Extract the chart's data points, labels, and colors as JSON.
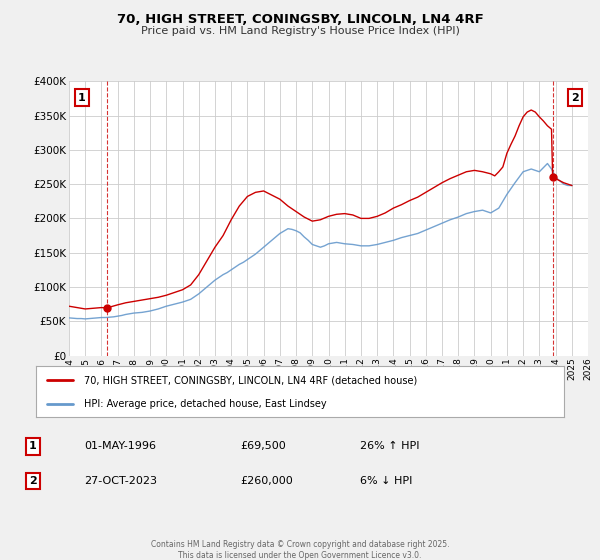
{
  "title": "70, HIGH STREET, CONINGSBY, LINCOLN, LN4 4RF",
  "subtitle": "Price paid vs. HM Land Registry's House Price Index (HPI)",
  "xlim": [
    1994,
    2026
  ],
  "ylim": [
    0,
    400000
  ],
  "yticks": [
    0,
    50000,
    100000,
    150000,
    200000,
    250000,
    300000,
    350000,
    400000
  ],
  "ytick_labels": [
    "£0",
    "£50K",
    "£100K",
    "£150K",
    "£200K",
    "£250K",
    "£300K",
    "£350K",
    "£400K"
  ],
  "background_color": "#f0f0f0",
  "plot_background": "#ffffff",
  "grid_color": "#cccccc",
  "line1_color": "#cc0000",
  "line2_color": "#6699cc",
  "line1_label": "70, HIGH STREET, CONINGSBY, LINCOLN, LN4 4RF (detached house)",
  "line2_label": "HPI: Average price, detached house, East Lindsey",
  "marker1_date": 1996.33,
  "marker1_value": 69500,
  "marker2_date": 2023.82,
  "marker2_value": 260000,
  "vline1_x": 1996.33,
  "vline2_x": 2023.82,
  "footer_text": "Contains HM Land Registry data © Crown copyright and database right 2025.\nThis data is licensed under the Open Government Licence v3.0.",
  "table_row1": [
    "1",
    "01-MAY-1996",
    "£69,500",
    "26% ↑ HPI"
  ],
  "table_row2": [
    "2",
    "27-OCT-2023",
    "£260,000",
    "6% ↓ HPI"
  ],
  "hpi_data_x": [
    1994.0,
    1994.25,
    1994.5,
    1994.75,
    1995.0,
    1995.25,
    1995.5,
    1995.75,
    1996.0,
    1996.25,
    1996.5,
    1996.75,
    1997.0,
    1997.25,
    1997.5,
    1997.75,
    1998.0,
    1998.25,
    1998.5,
    1998.75,
    1999.0,
    1999.25,
    1999.5,
    1999.75,
    2000.0,
    2000.25,
    2000.5,
    2000.75,
    2001.0,
    2001.25,
    2001.5,
    2001.75,
    2002.0,
    2002.25,
    2002.5,
    2002.75,
    2003.0,
    2003.25,
    2003.5,
    2003.75,
    2004.0,
    2004.25,
    2004.5,
    2004.75,
    2005.0,
    2005.25,
    2005.5,
    2005.75,
    2006.0,
    2006.25,
    2006.5,
    2006.75,
    2007.0,
    2007.25,
    2007.5,
    2007.75,
    2008.0,
    2008.25,
    2008.5,
    2008.75,
    2009.0,
    2009.25,
    2009.5,
    2009.75,
    2010.0,
    2010.25,
    2010.5,
    2010.75,
    2011.0,
    2011.25,
    2011.5,
    2011.75,
    2012.0,
    2012.25,
    2012.5,
    2012.75,
    2013.0,
    2013.25,
    2013.5,
    2013.75,
    2014.0,
    2014.25,
    2014.5,
    2014.75,
    2015.0,
    2015.25,
    2015.5,
    2015.75,
    2016.0,
    2016.25,
    2016.5,
    2016.75,
    2017.0,
    2017.25,
    2017.5,
    2017.75,
    2018.0,
    2018.25,
    2018.5,
    2018.75,
    2019.0,
    2019.25,
    2019.5,
    2019.75,
    2020.0,
    2020.25,
    2020.5,
    2020.75,
    2021.0,
    2021.25,
    2021.5,
    2021.75,
    2022.0,
    2022.25,
    2022.5,
    2022.75,
    2023.0,
    2023.25,
    2023.5,
    2023.75,
    2024.0,
    2024.25,
    2024.5,
    2024.75,
    2025.0
  ],
  "hpi_data_y": [
    55000,
    54500,
    54000,
    54000,
    53500,
    54000,
    54500,
    55000,
    55500,
    55500,
    56000,
    56500,
    57500,
    58500,
    60000,
    61000,
    62000,
    62500,
    63000,
    64000,
    65000,
    66500,
    68000,
    70000,
    72000,
    73500,
    75000,
    76500,
    78000,
    80000,
    82000,
    86000,
    90000,
    95000,
    100000,
    105000,
    110000,
    114000,
    118000,
    121000,
    125000,
    129000,
    133000,
    136000,
    140000,
    144000,
    148000,
    153000,
    158000,
    163000,
    168000,
    173000,
    178000,
    181500,
    185000,
    184000,
    182000,
    179000,
    173000,
    168000,
    162000,
    160000,
    158000,
    160000,
    163000,
    164000,
    165000,
    164000,
    163000,
    162500,
    162000,
    161000,
    160000,
    160000,
    160000,
    161000,
    162000,
    163500,
    165000,
    166500,
    168000,
    170000,
    172000,
    173500,
    175000,
    176500,
    178000,
    180500,
    183000,
    185500,
    188000,
    190500,
    193000,
    195500,
    198000,
    200000,
    202000,
    204500,
    207000,
    208500,
    210000,
    211000,
    212000,
    210000,
    208000,
    211500,
    215000,
    225000,
    235000,
    243500,
    252000,
    260000,
    268000,
    270000,
    272000,
    270000,
    268000,
    274000,
    280000,
    272000,
    260000,
    255000,
    250000,
    248000,
    248000
  ],
  "price_data_x": [
    1994.0,
    1994.5,
    1995.0,
    1995.5,
    1996.0,
    1996.33,
    1997.0,
    1997.5,
    1998.0,
    1998.5,
    1999.0,
    1999.5,
    2000.0,
    2000.5,
    2001.0,
    2001.5,
    2002.0,
    2002.5,
    2003.0,
    2003.5,
    2004.0,
    2004.5,
    2005.0,
    2005.5,
    2006.0,
    2006.5,
    2007.0,
    2007.5,
    2008.0,
    2008.5,
    2009.0,
    2009.5,
    2010.0,
    2010.5,
    2011.0,
    2011.5,
    2012.0,
    2012.5,
    2013.0,
    2013.5,
    2014.0,
    2014.5,
    2015.0,
    2015.5,
    2016.0,
    2016.5,
    2017.0,
    2017.5,
    2018.0,
    2018.5,
    2019.0,
    2019.5,
    2020.0,
    2020.25,
    2020.5,
    2020.75,
    2021.0,
    2021.25,
    2021.5,
    2021.75,
    2022.0,
    2022.25,
    2022.5,
    2022.75,
    2023.0,
    2023.25,
    2023.5,
    2023.75,
    2023.82,
    2024.0,
    2024.25,
    2024.5,
    2024.75,
    2025.0
  ],
  "price_data_y": [
    72000,
    70000,
    68000,
    69000,
    70000,
    69500,
    74000,
    77000,
    79000,
    81000,
    83000,
    85000,
    88000,
    92000,
    96000,
    103000,
    118000,
    138000,
    158000,
    175000,
    198000,
    218000,
    232000,
    238000,
    240000,
    234000,
    228000,
    218000,
    210000,
    202000,
    196000,
    198000,
    203000,
    206000,
    207000,
    205000,
    200000,
    200000,
    203000,
    208000,
    215000,
    220000,
    226000,
    231000,
    238000,
    245000,
    252000,
    258000,
    263000,
    268000,
    270000,
    268000,
    265000,
    262000,
    268000,
    275000,
    295000,
    308000,
    320000,
    335000,
    348000,
    355000,
    358000,
    355000,
    348000,
    342000,
    335000,
    330000,
    260000,
    258000,
    255000,
    252000,
    250000,
    248000
  ]
}
